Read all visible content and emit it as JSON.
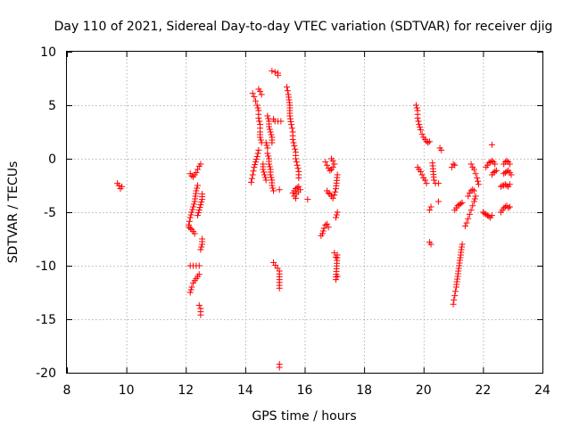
{
  "chart_data": {
    "type": "scatter",
    "title": "Day 110 of 2021, Sidereal Day-to-day VTEC variation (SDTVAR) for receiver djig",
    "xlabel": "GPS time / hours",
    "ylabel": "SDTVAR / TECUs",
    "xlim": [
      8,
      24
    ],
    "ylim": [
      -20,
      10
    ],
    "xticks": [
      "8",
      "10",
      "12",
      "14",
      "16",
      "18",
      "20",
      "22",
      "24"
    ],
    "yticks": [
      "10",
      "5",
      "0",
      "-5",
      "-10",
      "-15",
      "-20"
    ],
    "grid": true,
    "marker": "plus",
    "color": "#ff0000",
    "tracks": [
      [
        [
          9.7,
          -2.3
        ],
        [
          9.75,
          -2.5
        ],
        [
          9.8,
          -2.8
        ],
        [
          9.85,
          -2.6
        ]
      ],
      [
        [
          12.15,
          -1.4
        ],
        [
          12.2,
          -1.6
        ],
        [
          12.25,
          -1.7
        ],
        [
          12.3,
          -1.5
        ],
        [
          12.35,
          -1.3
        ],
        [
          12.4,
          -1.0
        ],
        [
          12.45,
          -0.7
        ],
        [
          12.5,
          -0.5
        ]
      ],
      [
        [
          12.1,
          -6.2
        ],
        [
          12.15,
          -5.5
        ],
        [
          12.2,
          -5.0
        ],
        [
          12.25,
          -4.5
        ],
        [
          12.3,
          -4.0
        ],
        [
          12.35,
          -3.0
        ],
        [
          12.4,
          -2.5
        ]
      ],
      [
        [
          12.1,
          -6.4
        ],
        [
          12.15,
          -6.5
        ],
        [
          12.2,
          -6.6
        ],
        [
          12.25,
          -6.8
        ],
        [
          12.3,
          -7.0
        ]
      ],
      [
        [
          12.4,
          -5.3
        ],
        [
          12.45,
          -4.8
        ],
        [
          12.5,
          -4.3
        ],
        [
          12.55,
          -3.8
        ],
        [
          12.55,
          -3.3
        ]
      ],
      [
        [
          12.5,
          -8.5
        ],
        [
          12.55,
          -8.0
        ],
        [
          12.55,
          -7.5
        ]
      ],
      [
        [
          12.15,
          -12.5
        ],
        [
          12.2,
          -12.0
        ],
        [
          12.25,
          -11.6
        ],
        [
          12.3,
          -11.4
        ],
        [
          12.35,
          -11.2
        ],
        [
          12.4,
          -11.0
        ],
        [
          12.45,
          -10.8
        ]
      ],
      [
        [
          12.15,
          -10.0
        ],
        [
          12.45,
          -10.0
        ],
        [
          12.45,
          -13.7
        ],
        [
          12.5,
          -14.0
        ],
        [
          12.5,
          -14.6
        ]
      ],
      [
        [
          14.2,
          -2.2
        ],
        [
          14.25,
          -1.5
        ],
        [
          14.3,
          -0.8
        ],
        [
          14.35,
          -0.3
        ],
        [
          14.4,
          0.2
        ],
        [
          14.45,
          0.8
        ]
      ],
      [
        [
          14.25,
          6.1
        ],
        [
          14.3,
          5.8
        ],
        [
          14.35,
          5.4
        ],
        [
          14.4,
          5.0
        ],
        [
          14.45,
          4.5
        ],
        [
          14.45,
          3.8
        ],
        [
          14.5,
          3.2
        ],
        [
          14.5,
          2.5
        ],
        [
          14.5,
          2.0
        ],
        [
          14.55,
          1.5
        ]
      ],
      [
        [
          14.45,
          6.5
        ],
        [
          14.5,
          6.3
        ],
        [
          14.55,
          6.0
        ]
      ],
      [
        [
          14.7,
          1.5
        ],
        [
          14.75,
          1.0
        ],
        [
          14.75,
          0.5
        ],
        [
          14.8,
          0.0
        ],
        [
          14.8,
          -0.5
        ],
        [
          14.85,
          -1.0
        ],
        [
          14.85,
          -1.5
        ],
        [
          14.9,
          -2.0
        ],
        [
          14.9,
          -2.5
        ],
        [
          14.95,
          -3.0
        ]
      ],
      [
        [
          14.75,
          4.0
        ],
        [
          14.8,
          3.5
        ],
        [
          14.8,
          3.0
        ],
        [
          14.85,
          2.5
        ],
        [
          14.9,
          2.0
        ],
        [
          14.9,
          1.5
        ]
      ],
      [
        [
          14.6,
          -0.5
        ],
        [
          14.6,
          -1.0
        ],
        [
          14.65,
          -1.5
        ],
        [
          14.7,
          -2.0
        ]
      ],
      [
        [
          14.9,
          8.2
        ],
        [
          15.1,
          8.0
        ],
        [
          15.1,
          7.8
        ]
      ],
      [
        [
          14.95,
          3.7
        ],
        [
          15.0,
          3.5
        ],
        [
          15.2,
          3.5
        ]
      ],
      [
        [
          14.95,
          -9.7
        ],
        [
          15.15,
          -10.5
        ],
        [
          15.15,
          -12.1
        ]
      ],
      [
        [
          15.15,
          -19.2
        ],
        [
          15.15,
          -19.5
        ],
        [
          15.15,
          -2.9
        ]
      ],
      [
        [
          15.4,
          6.7
        ],
        [
          15.45,
          6.0
        ],
        [
          15.5,
          5.0
        ],
        [
          15.5,
          4.0
        ],
        [
          15.55,
          3.2
        ],
        [
          15.6,
          2.5
        ],
        [
          15.6,
          1.8
        ],
        [
          15.65,
          1.2
        ],
        [
          15.7,
          0.6
        ],
        [
          15.7,
          0.0
        ],
        [
          15.75,
          -0.6
        ],
        [
          15.8,
          -1.2
        ],
        [
          15.8,
          -1.8
        ]
      ],
      [
        [
          15.6,
          -3.2
        ],
        [
          15.65,
          -3.0
        ],
        [
          15.7,
          -2.8
        ],
        [
          15.75,
          -2.7
        ],
        [
          15.8,
          -2.6
        ],
        [
          15.85,
          -2.9
        ],
        [
          15.65,
          -3.5
        ],
        [
          15.7,
          -3.7
        ]
      ],
      [
        [
          16.1,
          -3.8
        ],
        [
          16.55,
          -7.2
        ],
        [
          16.6,
          -7.0
        ],
        [
          16.65,
          -6.5
        ],
        [
          16.7,
          -6.2
        ],
        [
          16.75,
          -6.1
        ],
        [
          16.8,
          -6.4
        ]
      ],
      [
        [
          16.7,
          -0.3
        ],
        [
          16.75,
          -0.6
        ],
        [
          16.8,
          -0.9
        ],
        [
          16.85,
          -1.1
        ],
        [
          16.9,
          -1.0
        ],
        [
          16.95,
          -0.8
        ],
        [
          17.0,
          -0.5
        ],
        [
          16.95,
          -0.2
        ],
        [
          16.9,
          0.0
        ]
      ],
      [
        [
          16.75,
          -3.0
        ],
        [
          16.8,
          -3.2
        ],
        [
          16.85,
          -3.3
        ],
        [
          16.9,
          -3.5
        ],
        [
          16.95,
          -3.7
        ],
        [
          17.0,
          -3.4
        ],
        [
          17.05,
          -2.8
        ],
        [
          17.1,
          -1.5
        ]
      ],
      [
        [
          17.0,
          -8.8
        ],
        [
          17.05,
          -9.2
        ],
        [
          17.1,
          -9.0
        ],
        [
          17.05,
          -11.3
        ],
        [
          17.1,
          -11.0
        ],
        [
          17.1,
          -5.0
        ],
        [
          17.05,
          -5.5
        ]
      ],
      [
        [
          19.75,
          5.0
        ],
        [
          19.8,
          4.5
        ],
        [
          19.8,
          3.8
        ],
        [
          19.85,
          3.2
        ],
        [
          19.9,
          2.7
        ],
        [
          19.95,
          2.3
        ],
        [
          20.0,
          2.0
        ],
        [
          20.05,
          1.8
        ],
        [
          20.1,
          1.6
        ],
        [
          20.15,
          1.5
        ],
        [
          20.2,
          1.6
        ]
      ],
      [
        [
          19.8,
          -0.8
        ],
        [
          19.85,
          -1.0
        ],
        [
          19.9,
          -1.2
        ],
        [
          19.95,
          -1.5
        ],
        [
          20.0,
          -1.8
        ],
        [
          20.05,
          -2.0
        ],
        [
          20.1,
          -2.3
        ]
      ],
      [
        [
          20.2,
          -4.8
        ],
        [
          20.25,
          -4.5
        ],
        [
          20.2,
          -7.8
        ],
        [
          20.25,
          -8.0
        ],
        [
          20.3,
          -0.4
        ],
        [
          20.35,
          -2.0
        ],
        [
          20.4,
          -2.3
        ]
      ],
      [
        [
          20.5,
          -2.3
        ],
        [
          20.55,
          1.0
        ],
        [
          20.6,
          0.8
        ],
        [
          20.5,
          -4.0
        ]
      ],
      [
        [
          20.95,
          -0.8
        ],
        [
          21.0,
          -0.5
        ],
        [
          21.05,
          -0.6
        ]
      ],
      [
        [
          21.0,
          -13.6
        ],
        [
          21.02,
          -13.2
        ],
        [
          21.05,
          -12.8
        ],
        [
          21.07,
          -12.4
        ],
        [
          21.1,
          -12.0
        ],
        [
          21.12,
          -11.5
        ],
        [
          21.15,
          -11.0
        ],
        [
          21.17,
          -10.5
        ],
        [
          21.2,
          -10.0
        ],
        [
          21.22,
          -9.5
        ],
        [
          21.25,
          -9.0
        ],
        [
          21.27,
          -8.5
        ],
        [
          21.3,
          -8.0
        ]
      ],
      [
        [
          21.05,
          -4.8
        ],
        [
          21.1,
          -4.6
        ],
        [
          21.15,
          -4.4
        ],
        [
          21.2,
          -4.3
        ],
        [
          21.25,
          -4.2
        ],
        [
          21.3,
          -4.1
        ]
      ],
      [
        [
          21.4,
          -6.3
        ],
        [
          21.45,
          -6.0
        ],
        [
          21.5,
          -5.6
        ],
        [
          21.55,
          -5.2
        ],
        [
          21.6,
          -4.8
        ],
        [
          21.65,
          -4.4
        ],
        [
          21.7,
          -4.0
        ],
        [
          21.75,
          -3.5
        ]
      ],
      [
        [
          21.5,
          -3.5
        ],
        [
          21.55,
          -3.2
        ],
        [
          21.6,
          -3.0
        ],
        [
          21.65,
          -2.9
        ],
        [
          21.7,
          -3.0
        ]
      ],
      [
        [
          21.6,
          -0.5
        ],
        [
          21.65,
          -0.8
        ],
        [
          21.7,
          -1.0
        ],
        [
          21.75,
          -1.4
        ],
        [
          21.8,
          -1.8
        ],
        [
          21.85,
          -2.4
        ]
      ],
      [
        [
          22.0,
          -5.0
        ],
        [
          22.05,
          -5.1
        ],
        [
          22.1,
          -5.2
        ],
        [
          22.15,
          -5.3
        ],
        [
          22.2,
          -5.4
        ],
        [
          22.25,
          -5.5
        ],
        [
          22.3,
          -5.3
        ]
      ],
      [
        [
          22.1,
          -0.8
        ],
        [
          22.15,
          -0.6
        ],
        [
          22.2,
          -0.4
        ],
        [
          22.25,
          -0.3
        ],
        [
          22.3,
          -0.2
        ],
        [
          22.35,
          -0.3
        ],
        [
          22.4,
          -0.5
        ]
      ],
      [
        [
          22.3,
          1.3
        ],
        [
          22.3,
          -1.5
        ],
        [
          22.35,
          -1.3
        ],
        [
          22.4,
          -1.2
        ],
        [
          22.45,
          -1.1
        ]
      ],
      [
        [
          22.6,
          -5.0
        ],
        [
          22.65,
          -4.8
        ],
        [
          22.7,
          -4.6
        ],
        [
          22.75,
          -4.5
        ],
        [
          22.8,
          -4.4
        ],
        [
          22.85,
          -4.6
        ],
        [
          22.9,
          -4.5
        ]
      ],
      [
        [
          22.6,
          -2.6
        ],
        [
          22.65,
          -2.5
        ],
        [
          22.7,
          -2.5
        ],
        [
          22.75,
          -2.4
        ],
        [
          22.8,
          -2.5
        ],
        [
          22.85,
          -2.6
        ],
        [
          22.9,
          -2.4
        ]
      ],
      [
        [
          22.7,
          -0.5
        ],
        [
          22.75,
          -0.3
        ],
        [
          22.8,
          -0.2
        ],
        [
          22.85,
          -0.3
        ],
        [
          22.9,
          -0.5
        ]
      ],
      [
        [
          22.7,
          -1.4
        ],
        [
          22.75,
          -1.3
        ],
        [
          22.8,
          -1.2
        ],
        [
          22.85,
          -1.1
        ],
        [
          22.9,
          -1.3
        ],
        [
          22.95,
          -1.5
        ]
      ]
    ]
  }
}
